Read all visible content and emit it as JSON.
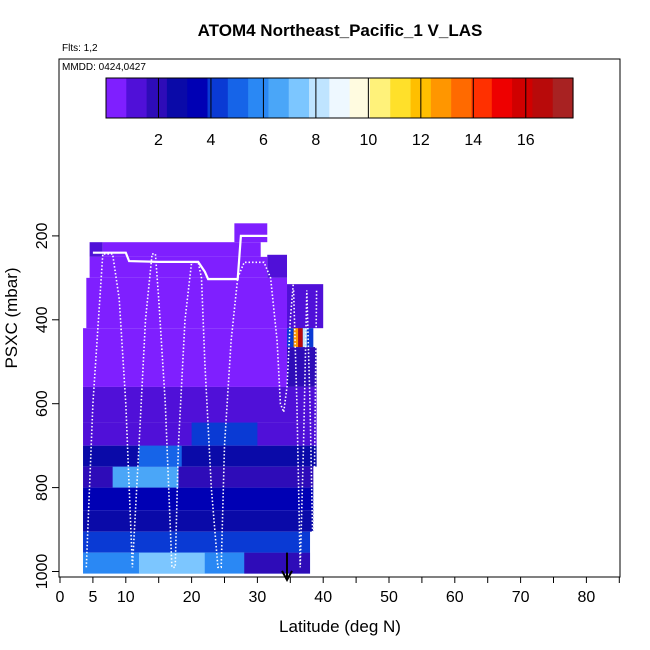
{
  "chart_data": {
    "type": "heatmap",
    "title": "ATOM4 Northeast_Pacific_1 V_LAS",
    "flights_note": "Flts: 1,2",
    "dates_note": "MMDD: 0424,0427",
    "xlabel": "Latitude (deg N)",
    "ylabel": "PSXC (mbar)",
    "xlim": [
      0,
      85
    ],
    "ylim": [
      1020,
      0
    ],
    "x_ticks": [
      0,
      5,
      10,
      20,
      30,
      40,
      50,
      60,
      70,
      80
    ],
    "y_ticks": [
      200,
      400,
      600,
      800,
      1000
    ],
    "colorbar": {
      "range": [
        0,
        17.8
      ],
      "ticks": [
        2,
        4,
        6,
        8,
        10,
        12,
        14,
        16
      ],
      "colors": [
        "#7f1fff",
        "#5010d8",
        "#2e0cb8",
        "#0a0aa8",
        "#0000b4",
        "#0a3ad4",
        "#1664e8",
        "#2a88f4",
        "#4aa6f8",
        "#7cc6ff",
        "#bfe4ff",
        "#eef8ff",
        "#fffbe0",
        "#fff27a",
        "#ffe02a",
        "#ffbf00",
        "#ff9600",
        "#ff6a00",
        "#ff3000",
        "#ee0000",
        "#d00000",
        "#b80a0a",
        "#a82222"
      ]
    },
    "cells": [
      {
        "x": [
          4.5,
          6.5
        ],
        "y": [
          215,
          250
        ],
        "v": 0.8
      },
      {
        "x": [
          6.5,
          30.5
        ],
        "y": [
          215,
          250
        ],
        "v": 0.6
      },
      {
        "x": [
          26.5,
          31.5
        ],
        "y": [
          170,
          215
        ],
        "v": 0.7
      },
      {
        "x": [
          4.5,
          31.5
        ],
        "y": [
          250,
          300
        ],
        "v": 0.6
      },
      {
        "x": [
          31.5,
          34.5
        ],
        "y": [
          245,
          300
        ],
        "v": 0.9
      },
      {
        "x": [
          4.0,
          34.5
        ],
        "y": [
          300,
          420
        ],
        "v": 0.7
      },
      {
        "x": [
          34.5,
          40.0
        ],
        "y": [
          315,
          420
        ],
        "v": 1.5
      },
      {
        "x": [
          34.5,
          38.5
        ],
        "y": [
          420,
          465
        ],
        "v": 4.5
      },
      {
        "x": [
          35.5,
          36.2
        ],
        "y": [
          420,
          465
        ],
        "v": 12.5
      },
      {
        "x": [
          36.2,
          36.9
        ],
        "y": [
          420,
          465
        ],
        "v": 16.5
      },
      {
        "x": [
          36.9,
          37.5
        ],
        "y": [
          420,
          465
        ],
        "v": 8.0
      },
      {
        "x": [
          3.5,
          34.5
        ],
        "y": [
          420,
          560
        ],
        "v": 0.7
      },
      {
        "x": [
          34.5,
          39.0
        ],
        "y": [
          465,
          560
        ],
        "v": 2.0
      },
      {
        "x": [
          3.5,
          39.0
        ],
        "y": [
          560,
          645
        ],
        "v": 0.9
      },
      {
        "x": [
          3.5,
          39.0
        ],
        "y": [
          645,
          700
        ],
        "v": 1.4
      },
      {
        "x": [
          20.0,
          30.0
        ],
        "y": [
          645,
          700
        ],
        "v": 4.5
      },
      {
        "x": [
          3.5,
          39.0
        ],
        "y": [
          700,
          750
        ],
        "v": 2.6
      },
      {
        "x": [
          12.0,
          18.5
        ],
        "y": [
          700,
          750
        ],
        "v": 4.8
      },
      {
        "x": [
          3.5,
          38.5
        ],
        "y": [
          750,
          800
        ],
        "v": 2.2
      },
      {
        "x": [
          8.0,
          18.0
        ],
        "y": [
          750,
          800
        ],
        "v": 6.2
      },
      {
        "x": [
          3.5,
          38.5
        ],
        "y": [
          800,
          855
        ],
        "v": 3.5
      },
      {
        "x": [
          3.5,
          38.5
        ],
        "y": [
          855,
          905
        ],
        "v": 2.8
      },
      {
        "x": [
          3.5,
          38.0
        ],
        "y": [
          905,
          955
        ],
        "v": 4.2
      },
      {
        "x": [
          3.5,
          38.0
        ],
        "y": [
          955,
          1005
        ],
        "v": 5.5
      },
      {
        "x": [
          12.0,
          22.0
        ],
        "y": [
          955,
          1005
        ],
        "v": 7.0
      },
      {
        "x": [
          28.0,
          38.0
        ],
        "y": [
          955,
          1005
        ],
        "v": 2.2
      }
    ],
    "series": [
      {
        "style": "dotted",
        "x": [
          4,
          5,
          6.5,
          7,
          8,
          9,
          10,
          11,
          12,
          13,
          14,
          14.5,
          15,
          16,
          17,
          17.5,
          18,
          19,
          20,
          21,
          21.5,
          22,
          23,
          24,
          24.5,
          25,
          26,
          27,
          28,
          29,
          30,
          31,
          32,
          33,
          33.5,
          34,
          34.5,
          35,
          35.5
        ],
        "y": [
          990,
          600,
          243,
          243,
          243,
          350,
          600,
          990,
          700,
          400,
          243,
          243,
          350,
          600,
          990,
          990,
          700,
          400,
          263,
          263,
          300,
          500,
          800,
          990,
          990,
          700,
          450,
          300,
          263,
          263,
          263,
          263,
          300,
          450,
          600,
          620,
          560,
          400,
          305
        ]
      },
      {
        "style": "dotted",
        "x": [
          35.5,
          36,
          36.5,
          37,
          37.5,
          38,
          38.5,
          39
        ],
        "y": [
          330,
          600,
          990,
          700,
          330,
          600,
          990,
          330
        ]
      },
      {
        "style": "solid",
        "x": [
          5,
          10,
          10.5,
          15,
          21,
          22,
          22.5,
          27,
          27.5,
          32.5,
          33
        ],
        "y": [
          240,
          240,
          260,
          262,
          262,
          285,
          303,
          303,
          200,
          200,
          240
        ]
      }
    ],
    "arrow": {
      "x": 34.5,
      "y_from": 955,
      "y_to": 1020
    }
  }
}
